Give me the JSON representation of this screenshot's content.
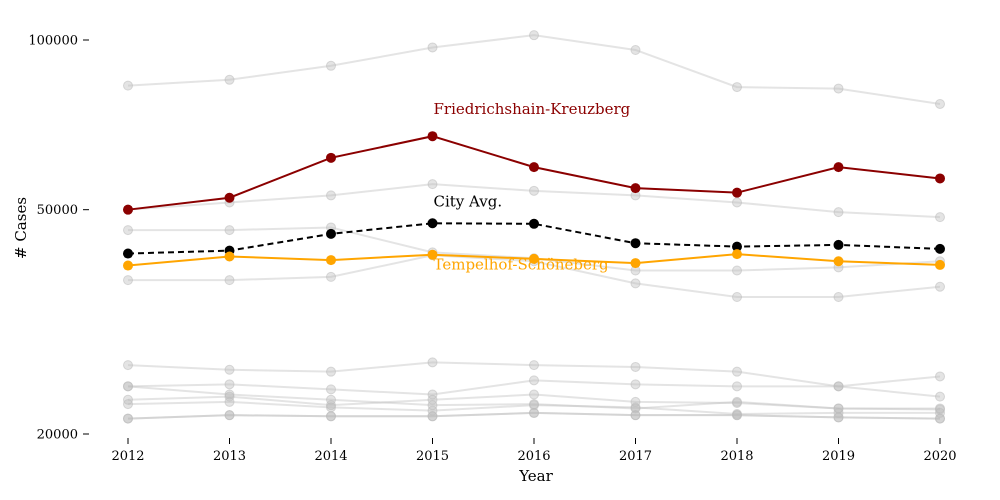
{
  "chart_data": {
    "type": "line",
    "title": "",
    "xlabel": "Year",
    "ylabel": "# Cases",
    "x": [
      2012,
      2013,
      2014,
      2015,
      2016,
      2017,
      2018,
      2019,
      2020
    ],
    "x_ticks": [
      "2012",
      "2013",
      "2014",
      "2015",
      "2016",
      "2017",
      "2018",
      "2019",
      "2020"
    ],
    "y_scale": "log",
    "y_ticks": [
      20000,
      50000,
      100000
    ],
    "y_tick_labels": [
      "20000",
      "50000",
      "100000"
    ],
    "ylim": [
      20000,
      105000
    ],
    "grid": false,
    "background_series": [
      {
        "values": [
          83000,
          85000,
          90000,
          97000,
          102000,
          96000,
          82500,
          82000,
          77000
        ]
      },
      {
        "values": [
          50000,
          51500,
          53000,
          55500,
          54000,
          53000,
          51500,
          49500,
          48500
        ]
      },
      {
        "values": [
          46000,
          46000,
          46500,
          42000,
          41000,
          39000,
          39000,
          39500,
          40500
        ]
      },
      {
        "values": [
          37500,
          37500,
          38000,
          41500,
          40500,
          37000,
          35000,
          35000,
          36500
        ]
      },
      {
        "values": [
          26500,
          26000,
          25800,
          26800,
          26500,
          26300,
          25800,
          24300,
          25300
        ]
      },
      {
        "values": [
          24300,
          24500,
          24000,
          23500,
          24900,
          24500,
          24300,
          24300,
          23300
        ]
      },
      {
        "values": [
          24300,
          23500,
          23000,
          22500,
          22600,
          22200,
          22800,
          22200,
          22200
        ]
      },
      {
        "values": [
          23000,
          23300,
          22500,
          23000,
          23500,
          22800,
          22700,
          22200,
          22100
        ]
      },
      {
        "values": [
          22600,
          22800,
          22300,
          22000,
          22500,
          22300,
          21700,
          21800,
          21800
        ]
      },
      {
        "values": [
          21300,
          21600,
          21500,
          21500,
          21800,
          21600,
          21600,
          21400,
          21300
        ]
      },
      {
        "values": [
          21300,
          21600,
          21500,
          21500,
          21800,
          21600,
          21600,
          21400,
          21300
        ]
      }
    ],
    "highlighted_series": [
      {
        "name": "Friedrichshain-Kreuzberg",
        "color": "#8b0000",
        "dashed": false,
        "values": [
          50000,
          52500,
          61800,
          67500,
          59500,
          54600,
          53600,
          59500,
          56800
        ]
      },
      {
        "name": "City Avg.",
        "color": "#000000",
        "dashed": true,
        "values": [
          41800,
          42300,
          45300,
          47300,
          47200,
          43600,
          43000,
          43300,
          42600
        ]
      },
      {
        "name": "Tempelhof-Schöneberg",
        "color": "#ffa500",
        "dashed": false,
        "values": [
          39800,
          41300,
          40700,
          41600,
          40900,
          40200,
          41700,
          40500,
          39900
        ]
      }
    ],
    "background_color": "#bbbbbb"
  }
}
